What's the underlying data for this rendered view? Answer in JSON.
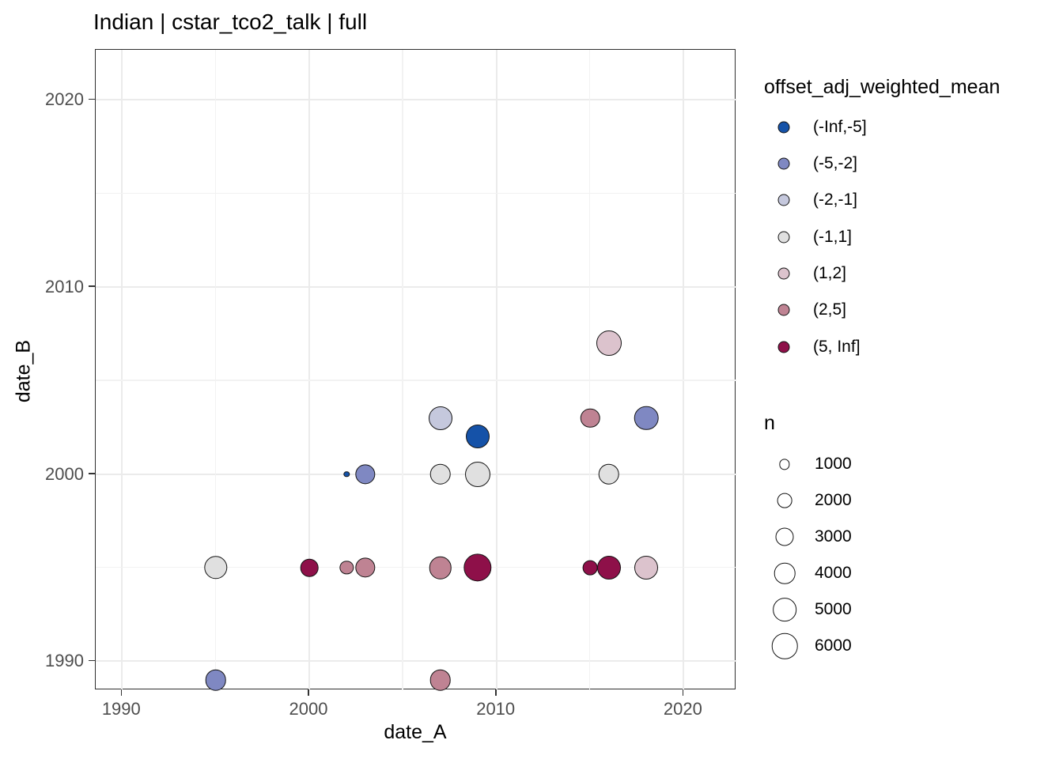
{
  "title": "Indian | cstar_tco2_talk | full",
  "chart_data": {
    "type": "scatter",
    "title": "Indian | cstar_tco2_talk | full",
    "xlabel": "date_A",
    "ylabel": "date_B",
    "x_ticks": [
      1990,
      2000,
      2010,
      2020
    ],
    "y_ticks": [
      1990,
      2000,
      2010,
      2020
    ],
    "minor_ticks": [
      1995,
      2005,
      2015
    ],
    "xlim": [
      1988.6,
      2022.8
    ],
    "ylim": [
      1988.5,
      2022.7
    ],
    "grid": "major and minor 5-year gridlines, white panel, black border",
    "color_legend": {
      "title": "offset_adj_weighted_mean",
      "bins": [
        {
          "label": "(-Inf,-5]",
          "color": "#1552a8"
        },
        {
          "label": "(-5,-2]",
          "color": "#7f88c2"
        },
        {
          "label": "(-2,-1]",
          "color": "#c5c8dd"
        },
        {
          "label": "(-1,1]",
          "color": "#e0e0e0"
        },
        {
          "label": "(1,2]",
          "color": "#dcc3cd"
        },
        {
          "label": "(2,5]",
          "color": "#bf8393"
        },
        {
          "label": "(5, Inf]",
          "color": "#8e1049"
        }
      ]
    },
    "size_legend": {
      "title": "n",
      "values": [
        1000,
        2000,
        3000,
        4000,
        5000,
        6000
      ]
    },
    "points": [
      {
        "x": 1995,
        "y": 1989,
        "n": 4000,
        "bin": "(-5,-2]"
      },
      {
        "x": 1995,
        "y": 1995,
        "n": 4900,
        "bin": "(-1,1]"
      },
      {
        "x": 2000,
        "y": 1995,
        "n": 2900,
        "bin": "(5, Inf]"
      },
      {
        "x": 2002,
        "y": 1995,
        "n": 1700,
        "bin": "(2,5]"
      },
      {
        "x": 2003,
        "y": 1995,
        "n": 3650,
        "bin": "(2,5]"
      },
      {
        "x": 2002,
        "y": 2000,
        "n": 310,
        "bin": "(-Inf,-5]"
      },
      {
        "x": 2003,
        "y": 2000,
        "n": 3650,
        "bin": "(-5,-2]"
      },
      {
        "x": 2007,
        "y": 2003,
        "n": 5100,
        "bin": "(-2,-1]"
      },
      {
        "x": 2009,
        "y": 2002,
        "n": 5100,
        "bin": "(-Inf,-5]"
      },
      {
        "x": 2007,
        "y": 2000,
        "n": 4000,
        "bin": "(-1,1]"
      },
      {
        "x": 2009,
        "y": 2000,
        "n": 5800,
        "bin": "(-1,1]"
      },
      {
        "x": 2007,
        "y": 1995,
        "n": 4600,
        "bin": "(2,5]"
      },
      {
        "x": 2009,
        "y": 1995,
        "n": 7100,
        "bin": "(5, Inf]"
      },
      {
        "x": 2007,
        "y": 1989,
        "n": 4000,
        "bin": "(2,5]"
      },
      {
        "x": 2015,
        "y": 2003,
        "n": 3400,
        "bin": "(2,5]"
      },
      {
        "x": 2018,
        "y": 2003,
        "n": 5300,
        "bin": "(-5,-2]"
      },
      {
        "x": 2016,
        "y": 2007,
        "n": 5800,
        "bin": "(1,2]"
      },
      {
        "x": 2016,
        "y": 2000,
        "n": 4000,
        "bin": "(-1,1]"
      },
      {
        "x": 2015,
        "y": 1995,
        "n": 2000,
        "bin": "(5, Inf]"
      },
      {
        "x": 2016,
        "y": 1995,
        "n": 5100,
        "bin": "(5, Inf]"
      },
      {
        "x": 2018,
        "y": 1995,
        "n": 5100,
        "bin": "(1,2]"
      }
    ]
  }
}
